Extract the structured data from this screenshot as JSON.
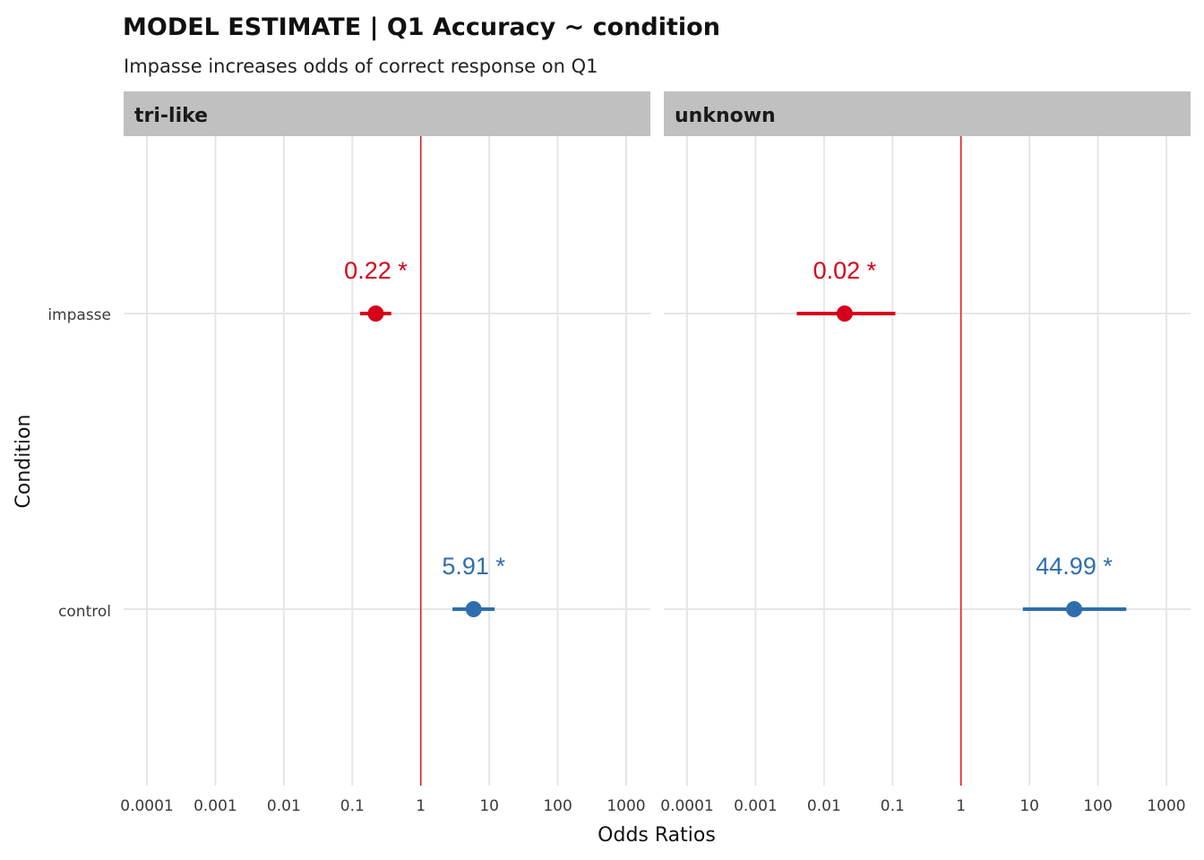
{
  "chart_data": {
    "type": "scatter",
    "title": "MODEL ESTIMATE  | Q1 Accuracy ~ condition",
    "subtitle": "Impasse increases odds of correct response on Q1",
    "xlabel": "Odds Ratios",
    "ylabel": "Condition",
    "x_scale": "log10",
    "xlim": [
      0.0001,
      1000
    ],
    "x_ticks": [
      "0.0001",
      "0.001",
      "0.01",
      "0.1",
      "1",
      "10",
      "100",
      "1000"
    ],
    "y_categories": [
      "impasse",
      "control"
    ],
    "reference_line": {
      "x": 1,
      "color": "#e41a1c"
    },
    "grid": true,
    "colors": {
      "impasse": "#d7001a",
      "control": "#2f6ead",
      "strip": "#c0c0c0",
      "grid": "#e6e6e6"
    },
    "facets": [
      {
        "label": "tri-like",
        "points": [
          {
            "condition": "impasse",
            "estimate": 0.22,
            "ci_low": 0.13,
            "ci_high": 0.37,
            "label": "0.22 *"
          },
          {
            "condition": "control",
            "estimate": 5.91,
            "ci_low": 2.9,
            "ci_high": 12.0,
            "label": "5.91 *"
          }
        ]
      },
      {
        "label": "unknown",
        "points": [
          {
            "condition": "impasse",
            "estimate": 0.02,
            "ci_low": 0.004,
            "ci_high": 0.11,
            "label": "0.02 *"
          },
          {
            "condition": "control",
            "estimate": 44.99,
            "ci_low": 8.0,
            "ci_high": 260.0,
            "label": "44.99 *"
          }
        ]
      }
    ]
  }
}
